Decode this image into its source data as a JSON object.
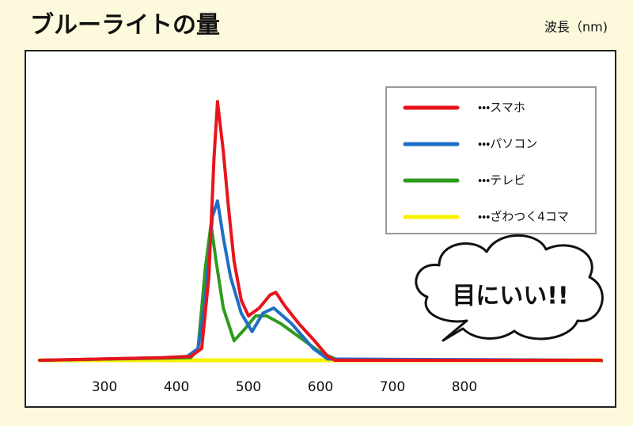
{
  "chart_data": {
    "type": "line",
    "title": "ブルーライトの量",
    "x_label": "波長（nm)",
    "annotation": "目にいい!!",
    "xlim": [
      190,
      1010
    ],
    "ylim": [
      0,
      100
    ],
    "xticks": [
      300,
      400,
      500,
      600,
      700,
      800
    ],
    "series": [
      {
        "name": "・・・スマホ",
        "color": "#e8141b",
        "x": [
          210,
          380,
          420,
          435,
          445,
          452,
          457,
          465,
          472,
          480,
          490,
          500,
          515,
          530,
          538,
          550,
          570,
          590,
          610,
          620,
          990
        ],
        "values": [
          0,
          1,
          1.5,
          4.5,
          32,
          77,
          99,
          80,
          59,
          38,
          23,
          17,
          20,
          25,
          26,
          21,
          14,
          8,
          1.5,
          0,
          0
        ]
      },
      {
        "name": "・・・パソコン",
        "color": "#1f6fc6",
        "x": [
          210,
          380,
          415,
          430,
          440,
          450,
          457,
          465,
          475,
          490,
          505,
          520,
          535,
          560,
          590,
          610,
          990
        ],
        "values": [
          0,
          1,
          1.5,
          4.5,
          23,
          55,
          61,
          47,
          32,
          18,
          11,
          18,
          20,
          14,
          4.5,
          0.5,
          0
        ]
      },
      {
        "name": "・・・テレビ",
        "color": "#2f9a1e",
        "x": [
          210,
          420,
          430,
          440,
          448,
          455,
          465,
          480,
          495,
          510,
          525,
          545,
          570,
          600,
          625,
          990
        ],
        "values": [
          0,
          1,
          4.5,
          35,
          52,
          38,
          20,
          7.5,
          12,
          17,
          17,
          14,
          9,
          3,
          0,
          0
        ]
      },
      {
        "name": "・・・ざわつく4コマ",
        "color": "#f7f200",
        "x": [
          210,
          990
        ],
        "values": [
          0,
          0
        ]
      }
    ]
  }
}
